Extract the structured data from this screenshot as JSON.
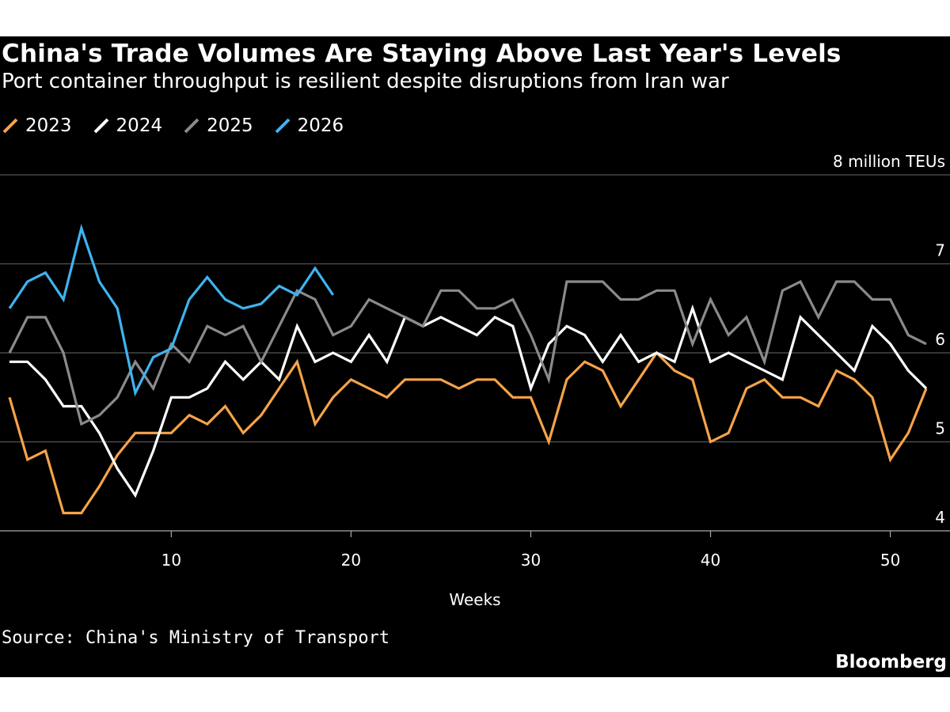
{
  "title": "China's Trade Volumes Are Staying Above Last Year's Levels",
  "subtitle": "Port container throughput is resilient despite disruptions from Iran war",
  "source": "Source: China's Ministry of Transport",
  "brand": "Bloomberg",
  "chart_data": {
    "type": "line",
    "xlabel": "Weeks",
    "ylabel": "",
    "unit_label": "8 million TEUs",
    "xlim": [
      1,
      52
    ],
    "ylim": [
      4,
      8
    ],
    "xticks": [
      10,
      20,
      30,
      40,
      50
    ],
    "yticks": [
      4,
      5,
      6,
      7,
      8
    ],
    "ytick_labels": [
      "4",
      "5",
      "6",
      "7",
      "8 million TEUs"
    ],
    "grid": "horizontal",
    "legend_position": "top-left",
    "series": [
      {
        "name": "2023",
        "color": "#f5a34a",
        "x": [
          1,
          2,
          3,
          4,
          5,
          6,
          7,
          8,
          9,
          10,
          11,
          12,
          13,
          14,
          15,
          16,
          17,
          18,
          19,
          20,
          21,
          22,
          23,
          24,
          25,
          26,
          27,
          28,
          29,
          30,
          31,
          32,
          33,
          34,
          35,
          36,
          37,
          38,
          39,
          40,
          41,
          42,
          43,
          44,
          45,
          46,
          47,
          48,
          49,
          50,
          51,
          52
        ],
        "values": [
          5.5,
          4.8,
          4.9,
          4.2,
          4.2,
          4.5,
          4.85,
          5.1,
          5.1,
          5.1,
          5.3,
          5.2,
          5.4,
          5.1,
          5.3,
          5.6,
          5.9,
          5.2,
          5.5,
          5.7,
          5.6,
          5.5,
          5.7,
          5.7,
          5.7,
          5.6,
          5.7,
          5.7,
          5.5,
          5.5,
          5.0,
          5.7,
          5.9,
          5.8,
          5.4,
          5.7,
          6.0,
          5.8,
          5.7,
          5.0,
          5.1,
          5.6,
          5.7,
          5.5,
          5.5,
          5.4,
          5.8,
          5.7,
          5.5,
          4.8,
          5.1,
          5.6
        ]
      },
      {
        "name": "2024",
        "color": "#ffffff",
        "x": [
          1,
          2,
          3,
          4,
          5,
          6,
          7,
          8,
          9,
          10,
          11,
          12,
          13,
          14,
          15,
          16,
          17,
          18,
          19,
          20,
          21,
          22,
          23,
          24,
          25,
          26,
          27,
          28,
          29,
          30,
          31,
          32,
          33,
          34,
          35,
          36,
          37,
          38,
          39,
          40,
          41,
          42,
          43,
          44,
          45,
          46,
          47,
          48,
          49,
          50,
          51,
          52
        ],
        "values": [
          5.9,
          5.9,
          5.7,
          5.4,
          5.4,
          5.1,
          4.7,
          4.4,
          4.9,
          5.5,
          5.5,
          5.6,
          5.9,
          5.7,
          5.9,
          5.7,
          6.3,
          5.9,
          6.0,
          5.9,
          6.2,
          5.9,
          6.4,
          6.3,
          6.4,
          6.3,
          6.2,
          6.4,
          6.3,
          5.6,
          6.1,
          6.3,
          6.2,
          5.9,
          6.2,
          5.9,
          6.0,
          5.9,
          6.5,
          5.9,
          6.0,
          5.9,
          5.8,
          5.7,
          6.4,
          6.2,
          6.0,
          5.8,
          6.3,
          6.1,
          5.8,
          5.6
        ]
      },
      {
        "name": "2025",
        "color": "#8a8a8a",
        "x": [
          1,
          2,
          3,
          4,
          5,
          6,
          7,
          8,
          9,
          10,
          11,
          12,
          13,
          14,
          15,
          16,
          17,
          18,
          19,
          20,
          21,
          22,
          23,
          24,
          25,
          26,
          27,
          28,
          29,
          30,
          31,
          32,
          33,
          34,
          35,
          36,
          37,
          38,
          39,
          40,
          41,
          42,
          43,
          44,
          45,
          46,
          47,
          48,
          49,
          50,
          51,
          52
        ],
        "values": [
          6.0,
          6.4,
          6.4,
          6.0,
          5.2,
          5.3,
          5.5,
          5.9,
          5.6,
          6.1,
          5.9,
          6.3,
          6.2,
          6.3,
          5.9,
          6.3,
          6.7,
          6.6,
          6.2,
          6.3,
          6.6,
          6.5,
          6.4,
          6.3,
          6.7,
          6.7,
          6.5,
          6.5,
          6.6,
          6.2,
          5.7,
          6.8,
          6.8,
          6.8,
          6.6,
          6.6,
          6.7,
          6.7,
          6.1,
          6.6,
          6.2,
          6.4,
          5.9,
          6.7,
          6.8,
          6.4,
          6.8,
          6.8,
          6.6,
          6.6,
          6.2,
          6.1
        ]
      },
      {
        "name": "2026",
        "color": "#3fb3f0",
        "x": [
          1,
          2,
          3,
          4,
          5,
          6,
          7,
          8,
          9,
          10,
          11,
          12,
          13,
          14,
          15,
          16,
          17,
          18,
          19
        ],
        "values": [
          6.5,
          6.8,
          6.9,
          6.6,
          7.4,
          6.8,
          6.5,
          5.55,
          5.95,
          6.05,
          6.6,
          6.85,
          6.6,
          6.5,
          6.55,
          6.75,
          6.65,
          6.95,
          6.65
        ]
      }
    ]
  }
}
